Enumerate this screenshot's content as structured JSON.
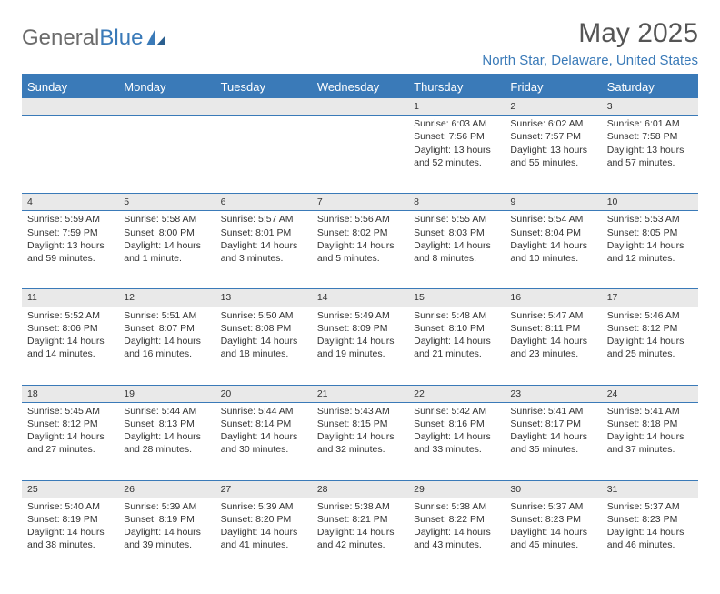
{
  "logo": {
    "text_gray": "General",
    "text_blue": "Blue"
  },
  "title": "May 2025",
  "location": "North Star, Delaware, United States",
  "colors": {
    "header_bar": "#3a7ab8",
    "daynum_bg": "#e9e9e9",
    "text": "#333333",
    "title_text": "#555555",
    "logo_gray": "#6b6b6b"
  },
  "day_headers": [
    "Sunday",
    "Monday",
    "Tuesday",
    "Wednesday",
    "Thursday",
    "Friday",
    "Saturday"
  ],
  "weeks": [
    {
      "nums": [
        "",
        "",
        "",
        "",
        "1",
        "2",
        "3"
      ],
      "cells": [
        null,
        null,
        null,
        null,
        {
          "sunrise": "6:03 AM",
          "sunset": "7:56 PM",
          "daylight": "13 hours and 52 minutes."
        },
        {
          "sunrise": "6:02 AM",
          "sunset": "7:57 PM",
          "daylight": "13 hours and 55 minutes."
        },
        {
          "sunrise": "6:01 AM",
          "sunset": "7:58 PM",
          "daylight": "13 hours and 57 minutes."
        }
      ]
    },
    {
      "nums": [
        "4",
        "5",
        "6",
        "7",
        "8",
        "9",
        "10"
      ],
      "cells": [
        {
          "sunrise": "5:59 AM",
          "sunset": "7:59 PM",
          "daylight": "13 hours and 59 minutes."
        },
        {
          "sunrise": "5:58 AM",
          "sunset": "8:00 PM",
          "daylight": "14 hours and 1 minute."
        },
        {
          "sunrise": "5:57 AM",
          "sunset": "8:01 PM",
          "daylight": "14 hours and 3 minutes."
        },
        {
          "sunrise": "5:56 AM",
          "sunset": "8:02 PM",
          "daylight": "14 hours and 5 minutes."
        },
        {
          "sunrise": "5:55 AM",
          "sunset": "8:03 PM",
          "daylight": "14 hours and 8 minutes."
        },
        {
          "sunrise": "5:54 AM",
          "sunset": "8:04 PM",
          "daylight": "14 hours and 10 minutes."
        },
        {
          "sunrise": "5:53 AM",
          "sunset": "8:05 PM",
          "daylight": "14 hours and 12 minutes."
        }
      ]
    },
    {
      "nums": [
        "11",
        "12",
        "13",
        "14",
        "15",
        "16",
        "17"
      ],
      "cells": [
        {
          "sunrise": "5:52 AM",
          "sunset": "8:06 PM",
          "daylight": "14 hours and 14 minutes."
        },
        {
          "sunrise": "5:51 AM",
          "sunset": "8:07 PM",
          "daylight": "14 hours and 16 minutes."
        },
        {
          "sunrise": "5:50 AM",
          "sunset": "8:08 PM",
          "daylight": "14 hours and 18 minutes."
        },
        {
          "sunrise": "5:49 AM",
          "sunset": "8:09 PM",
          "daylight": "14 hours and 19 minutes."
        },
        {
          "sunrise": "5:48 AM",
          "sunset": "8:10 PM",
          "daylight": "14 hours and 21 minutes."
        },
        {
          "sunrise": "5:47 AM",
          "sunset": "8:11 PM",
          "daylight": "14 hours and 23 minutes."
        },
        {
          "sunrise": "5:46 AM",
          "sunset": "8:12 PM",
          "daylight": "14 hours and 25 minutes."
        }
      ]
    },
    {
      "nums": [
        "18",
        "19",
        "20",
        "21",
        "22",
        "23",
        "24"
      ],
      "cells": [
        {
          "sunrise": "5:45 AM",
          "sunset": "8:12 PM",
          "daylight": "14 hours and 27 minutes."
        },
        {
          "sunrise": "5:44 AM",
          "sunset": "8:13 PM",
          "daylight": "14 hours and 28 minutes."
        },
        {
          "sunrise": "5:44 AM",
          "sunset": "8:14 PM",
          "daylight": "14 hours and 30 minutes."
        },
        {
          "sunrise": "5:43 AM",
          "sunset": "8:15 PM",
          "daylight": "14 hours and 32 minutes."
        },
        {
          "sunrise": "5:42 AM",
          "sunset": "8:16 PM",
          "daylight": "14 hours and 33 minutes."
        },
        {
          "sunrise": "5:41 AM",
          "sunset": "8:17 PM",
          "daylight": "14 hours and 35 minutes."
        },
        {
          "sunrise": "5:41 AM",
          "sunset": "8:18 PM",
          "daylight": "14 hours and 37 minutes."
        }
      ]
    },
    {
      "nums": [
        "25",
        "26",
        "27",
        "28",
        "29",
        "30",
        "31"
      ],
      "cells": [
        {
          "sunrise": "5:40 AM",
          "sunset": "8:19 PM",
          "daylight": "14 hours and 38 minutes."
        },
        {
          "sunrise": "5:39 AM",
          "sunset": "8:19 PM",
          "daylight": "14 hours and 39 minutes."
        },
        {
          "sunrise": "5:39 AM",
          "sunset": "8:20 PM",
          "daylight": "14 hours and 41 minutes."
        },
        {
          "sunrise": "5:38 AM",
          "sunset": "8:21 PM",
          "daylight": "14 hours and 42 minutes."
        },
        {
          "sunrise": "5:38 AM",
          "sunset": "8:22 PM",
          "daylight": "14 hours and 43 minutes."
        },
        {
          "sunrise": "5:37 AM",
          "sunset": "8:23 PM",
          "daylight": "14 hours and 45 minutes."
        },
        {
          "sunrise": "5:37 AM",
          "sunset": "8:23 PM",
          "daylight": "14 hours and 46 minutes."
        }
      ]
    }
  ],
  "labels": {
    "sunrise": "Sunrise:",
    "sunset": "Sunset:",
    "daylight": "Daylight:"
  }
}
